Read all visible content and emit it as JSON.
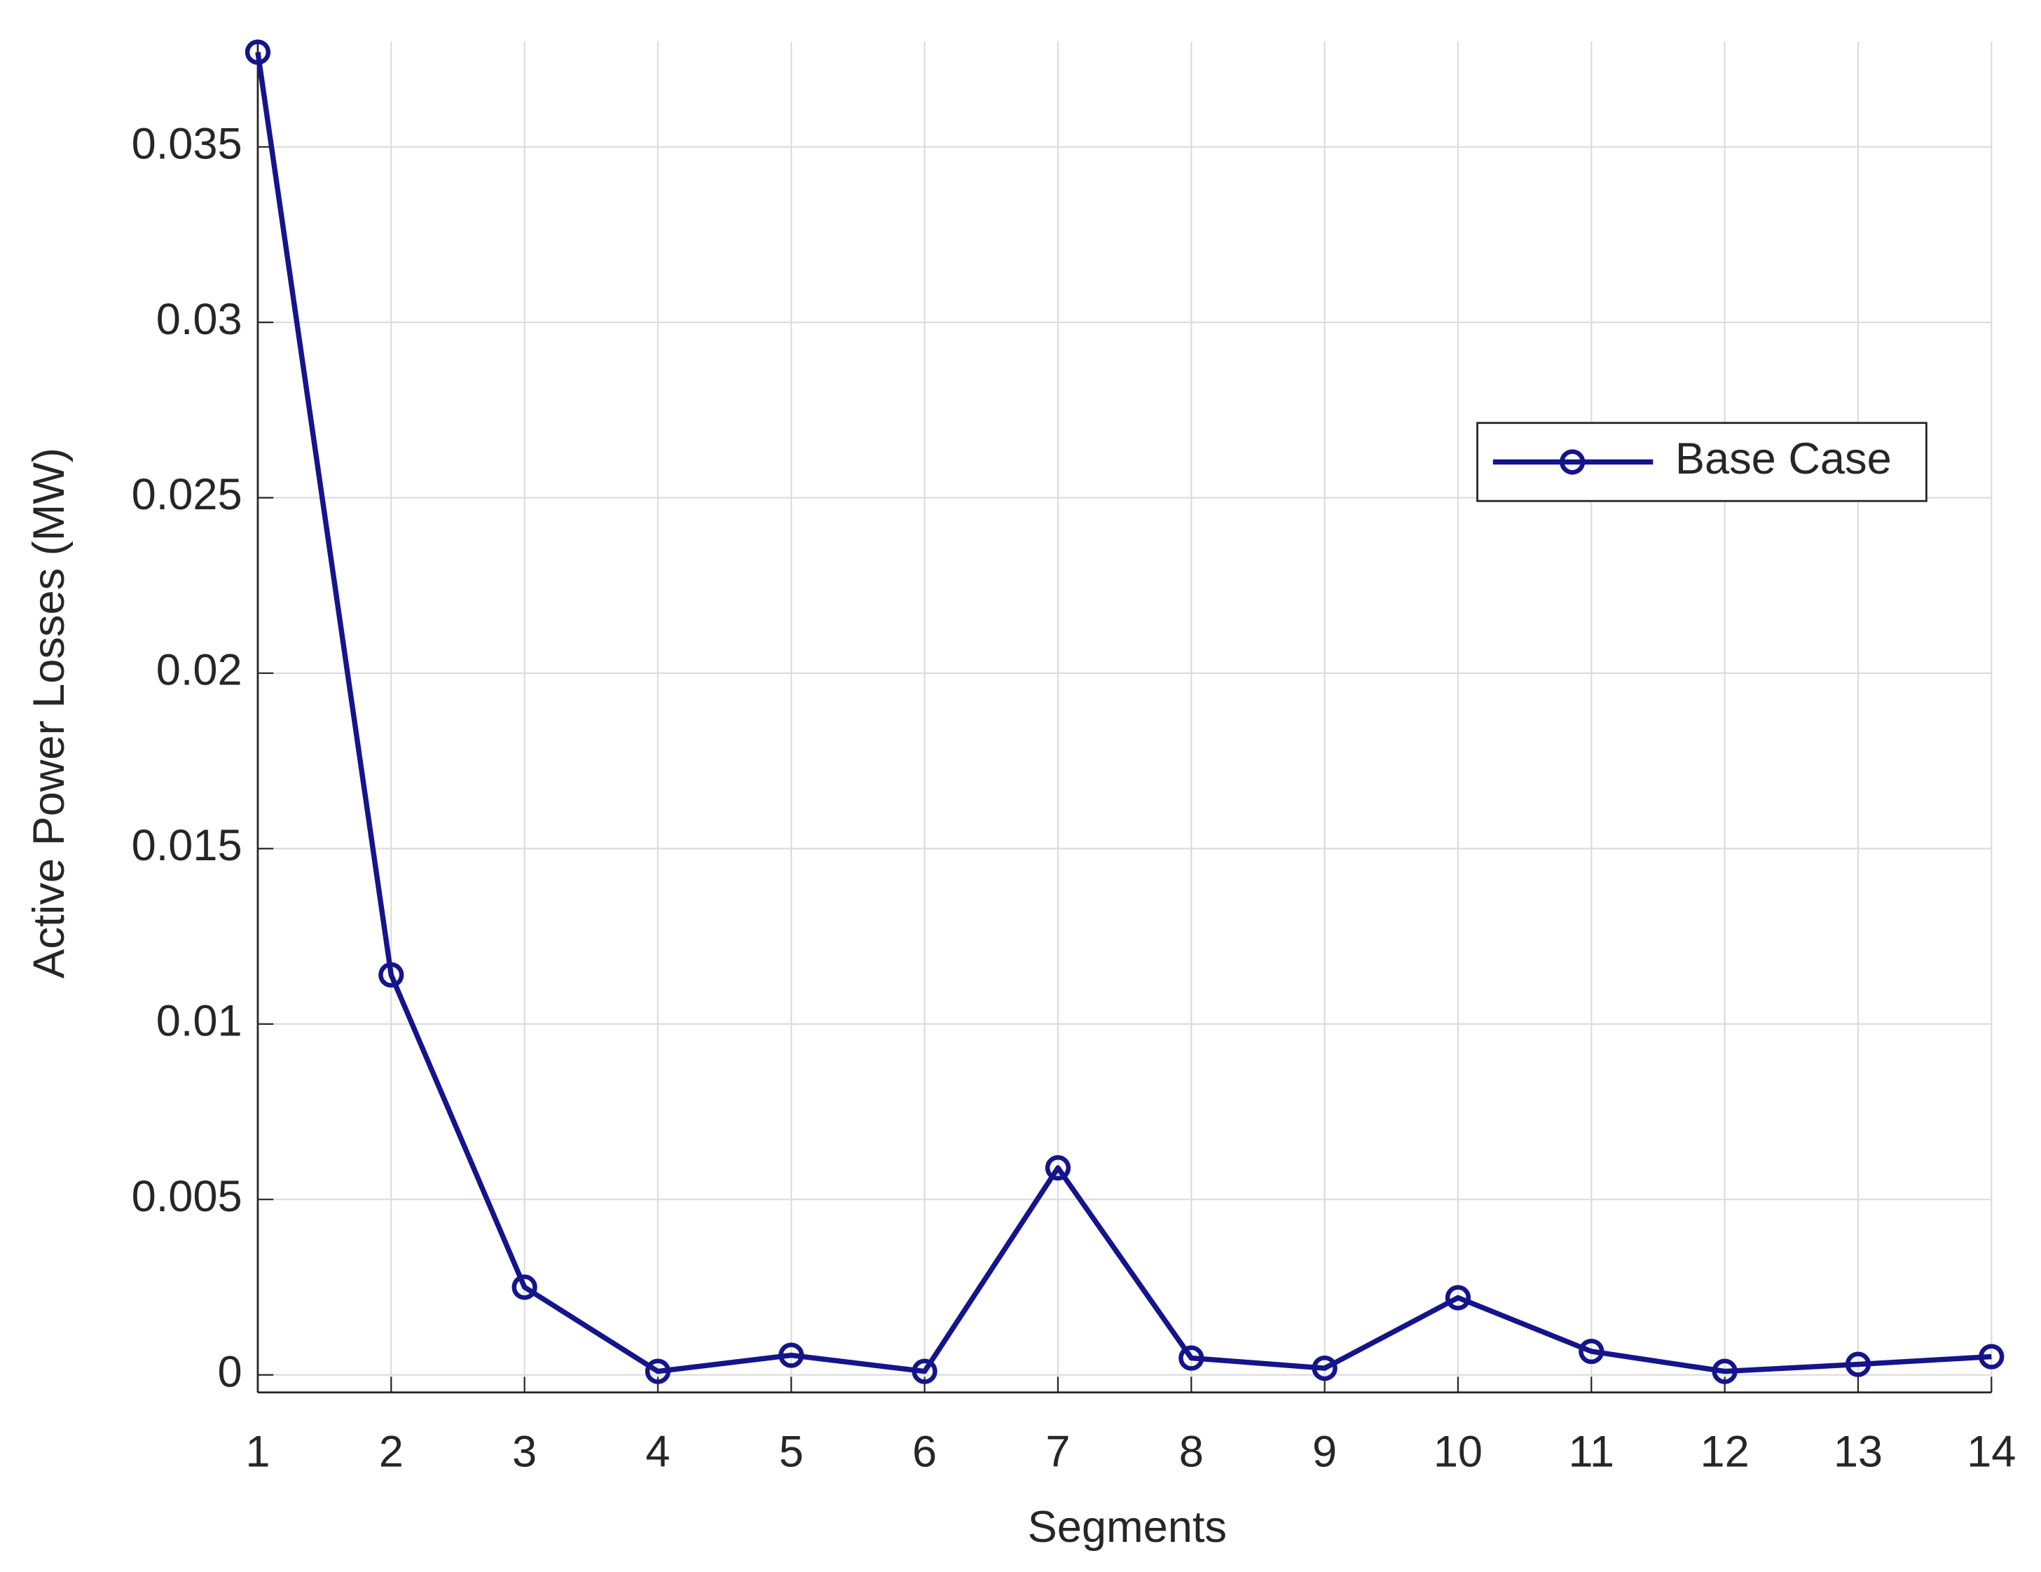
{
  "chart_data": {
    "type": "line",
    "xlabel": "Segments",
    "ylabel": "Active Power Losses (MW)",
    "x": [
      1,
      2,
      3,
      4,
      5,
      6,
      7,
      8,
      9,
      10,
      11,
      12,
      13,
      14
    ],
    "series": [
      {
        "name": "Base Case",
        "color": "#14148c",
        "values": [
          0.0377,
          0.0114,
          0.0025,
          0.0001,
          0.00056,
          0.0001,
          0.0059,
          0.00048,
          0.00019,
          0.0022,
          0.00067,
          0.0001,
          0.0003,
          0.00052
        ]
      }
    ],
    "xlim": [
      1,
      14
    ],
    "xticks": [
      1,
      2,
      3,
      4,
      5,
      6,
      7,
      8,
      9,
      10,
      11,
      12,
      13,
      14
    ],
    "ylim": [
      -0.0005,
      0.038
    ],
    "yticks": [
      0,
      0.005,
      0.01,
      0.015,
      0.02,
      0.025,
      0.03,
      0.035
    ],
    "grid": true,
    "legend": "east"
  }
}
